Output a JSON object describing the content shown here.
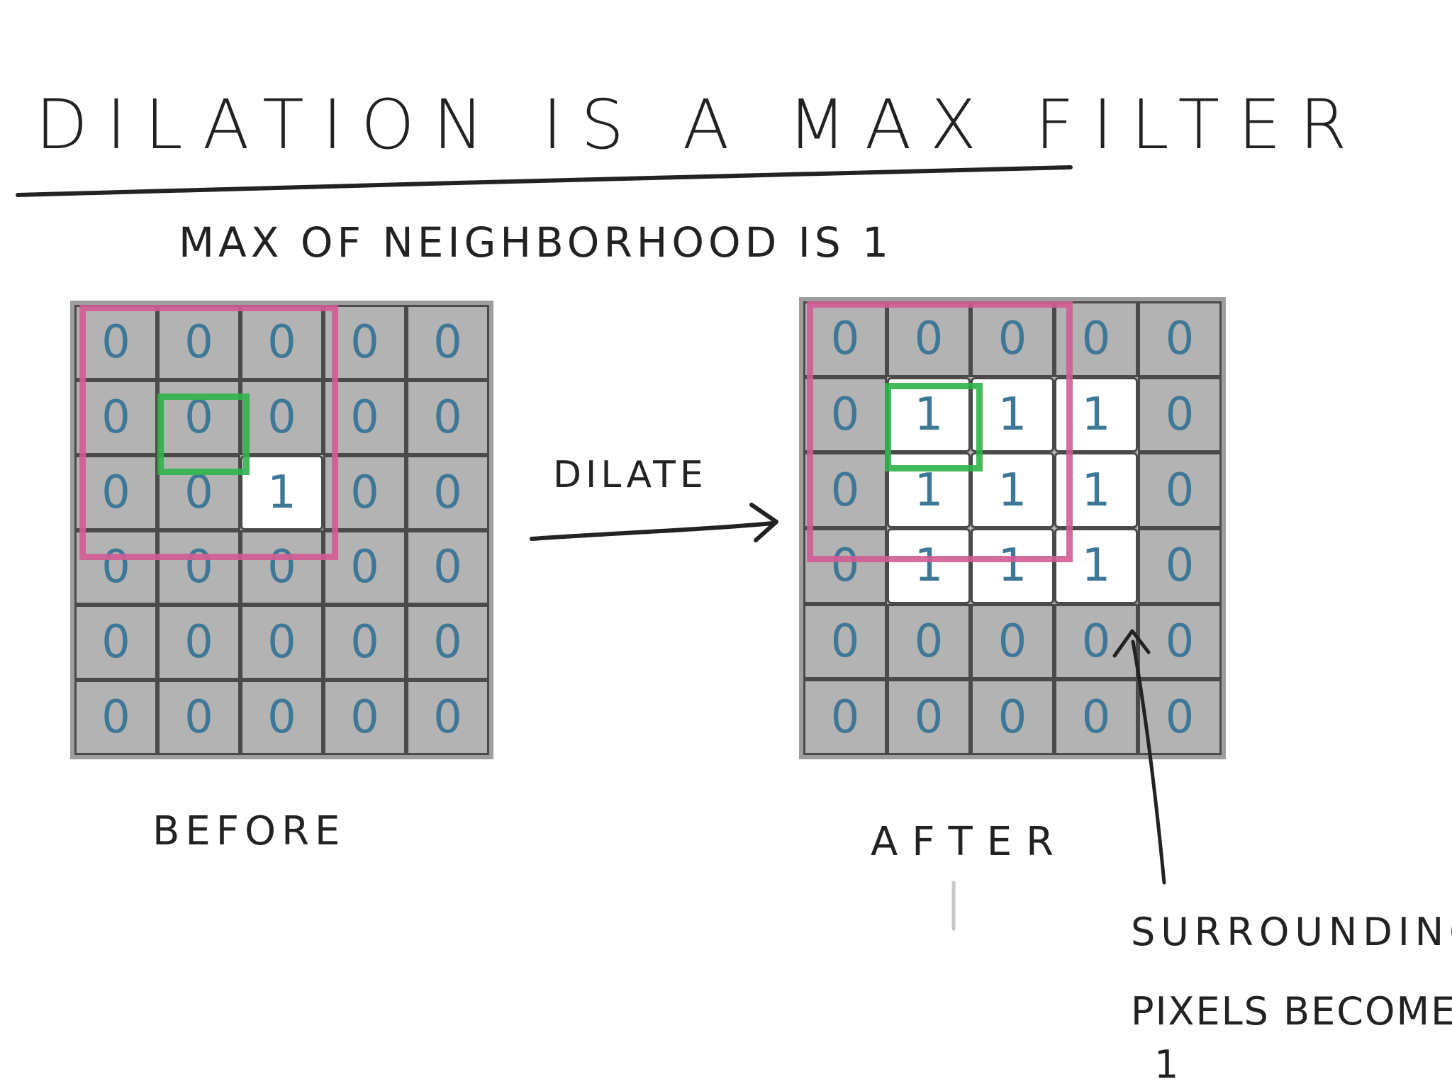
{
  "title": "DILATION IS A MAX FILTER",
  "subtitle": "MAX OF NEIGHBORHOOD IS 1",
  "arrow_label": "DILATE",
  "before": {
    "label": "BEFORE",
    "grid": [
      [
        "0",
        "0",
        "0",
        "0",
        "0"
      ],
      [
        "0",
        "0",
        "0",
        "0",
        "0"
      ],
      [
        "0",
        "0",
        "1",
        "0",
        "0"
      ],
      [
        "0",
        "0",
        "0",
        "0",
        "0"
      ],
      [
        "0",
        "0",
        "0",
        "0",
        "0"
      ],
      [
        "0",
        "0",
        "0",
        "0",
        "0"
      ]
    ]
  },
  "after": {
    "label": "AFTER",
    "grid": [
      [
        "0",
        "0",
        "0",
        "0",
        "0"
      ],
      [
        "0",
        "1",
        "1",
        "1",
        "0"
      ],
      [
        "0",
        "1",
        "1",
        "1",
        "0"
      ],
      [
        "0",
        "1",
        "1",
        "1",
        "0"
      ],
      [
        "0",
        "0",
        "0",
        "0",
        "0"
      ],
      [
        "0",
        "0",
        "0",
        "0",
        "0"
      ]
    ]
  },
  "annotation": {
    "line1": "SURROUNDING",
    "line2": "PIXELS BECOME",
    "line3": "1"
  },
  "colors": {
    "neighborhood": "#d25c94",
    "center": "#2fb34a",
    "digit": "#3f7896",
    "cell_off": "#b3b3b3",
    "cell_on": "#ffffff"
  }
}
